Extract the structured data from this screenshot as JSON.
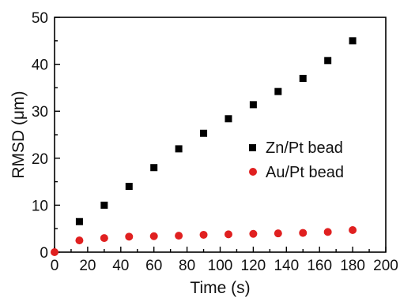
{
  "chart_data": {
    "type": "scatter",
    "title": "",
    "xlabel": "Time (s)",
    "ylabel": "RMSD (μm)",
    "xlim": [
      0,
      200
    ],
    "ylim": [
      0,
      50
    ],
    "x_ticks": [
      0,
      20,
      40,
      60,
      80,
      100,
      120,
      140,
      160,
      180,
      200
    ],
    "y_ticks": [
      0,
      10,
      20,
      30,
      40,
      50
    ],
    "grid": false,
    "legend_position": "right",
    "series": [
      {
        "name": "Zn/Pt bead",
        "marker": "square",
        "color": "#000000",
        "x": [
          15,
          30,
          45,
          60,
          75,
          90,
          105,
          120,
          135,
          150,
          165,
          180
        ],
        "y": [
          6.5,
          10,
          14,
          18,
          22,
          25.3,
          28.4,
          31.4,
          34.2,
          37,
          40.8,
          45
        ]
      },
      {
        "name": "Au/Pt bead",
        "marker": "circle",
        "color": "#e02020",
        "x": [
          0,
          15,
          30,
          45,
          60,
          75,
          90,
          105,
          120,
          135,
          150,
          165,
          180
        ],
        "y": [
          0,
          2.5,
          3.0,
          3.3,
          3.4,
          3.5,
          3.7,
          3.8,
          3.9,
          4.0,
          4.1,
          4.3,
          4.7
        ]
      }
    ]
  }
}
